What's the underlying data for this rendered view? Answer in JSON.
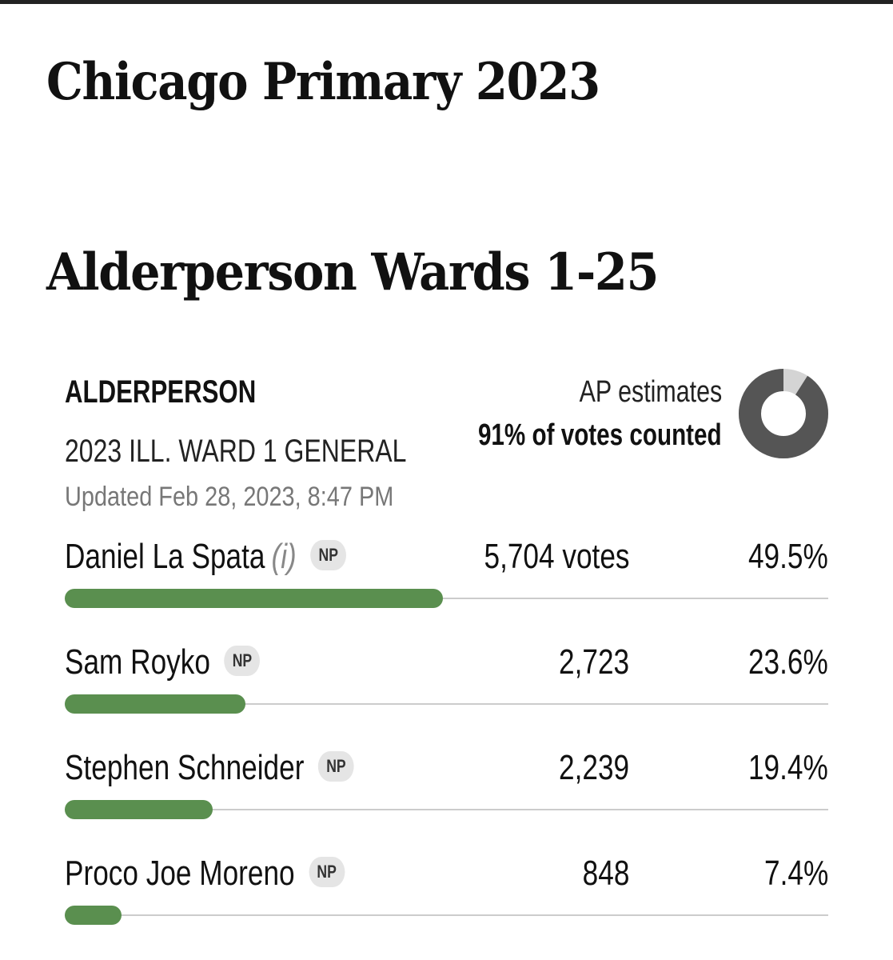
{
  "page": {
    "title": "Chicago Primary 2023"
  },
  "section": {
    "title": "Alderperson Wards 1-25"
  },
  "race": {
    "label": "ALDERPERSON",
    "subtitle": "2023 ILL. WARD 1 GENERAL",
    "updated": "Updated Feb 28, 2023, 8:47 PM",
    "estimates_label": "AP estimates",
    "votes_counted_text": "91% of votes counted",
    "votes_counted_fraction": 0.91,
    "candidates": [
      {
        "name": "Daniel La Spata",
        "incumbent": "(i)",
        "party": "NP",
        "votes": "5,704 votes",
        "pct": "49.5%",
        "share": 0.495
      },
      {
        "name": "Sam Royko",
        "incumbent": "",
        "party": "NP",
        "votes": "2,723",
        "pct": "23.6%",
        "share": 0.236
      },
      {
        "name": "Stephen Schneider",
        "incumbent": "",
        "party": "NP",
        "votes": "2,239",
        "pct": "19.4%",
        "share": 0.194
      },
      {
        "name": "Proco Joe Moreno",
        "incumbent": "",
        "party": "NP",
        "votes": "848",
        "pct": "7.4%",
        "share": 0.074
      }
    ]
  },
  "colors": {
    "bar_fill": "#5a8f4f",
    "bar_track": "#cccccc",
    "donut_counted": "#555555",
    "donut_remaining": "#d4d4d4",
    "badge_bg": "#e5e5e5"
  }
}
